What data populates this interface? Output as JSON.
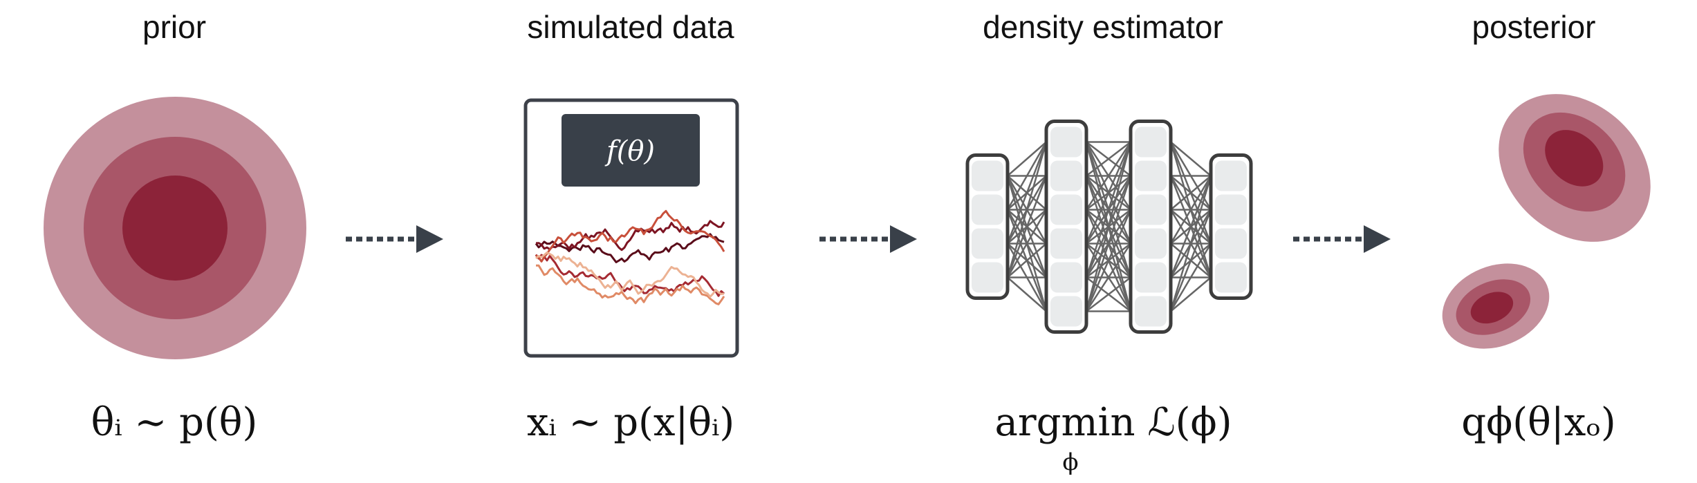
{
  "stages": [
    {
      "title": "prior"
    },
    {
      "title": "simulated data"
    },
    {
      "title": "density estimator"
    },
    {
      "title": "posterior"
    }
  ],
  "formulas": {
    "prior": "θᵢ ∼ p(θ)",
    "simulated_data": "xᵢ ∼ p(x|θᵢ)",
    "density_main": "argmin ℒ(ϕ)",
    "density_sub": "ϕ",
    "posterior": "qϕ(θ|xₒ)"
  },
  "simulator": {
    "label": "f(θ)"
  },
  "network": {
    "layer_sizes": [
      4,
      6,
      6,
      4
    ]
  },
  "colors": {
    "dark_red": "#8c2339",
    "mid_red": "#a95668",
    "light_red": "#c4909c",
    "slate": "#394049",
    "node_fill": "#e9ebec",
    "node_border": "#3d3d3d",
    "trace_colors": [
      "#5a0c1a",
      "#7d1422",
      "#a52a32",
      "#c84f3a",
      "#e08a66",
      "#ecb293"
    ]
  }
}
